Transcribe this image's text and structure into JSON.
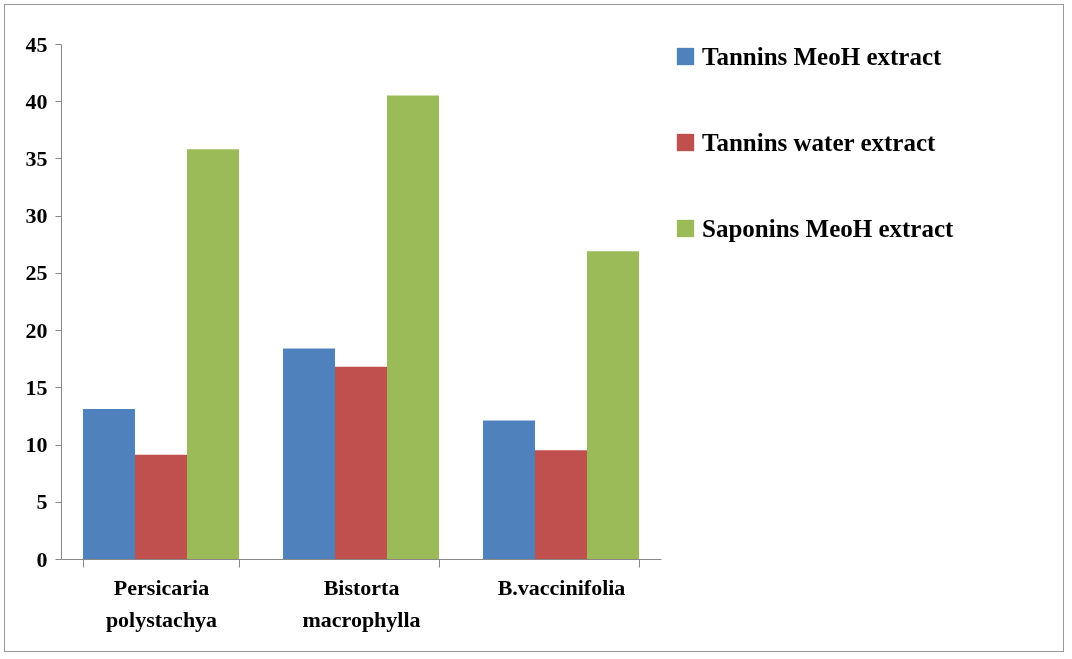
{
  "chart_data": {
    "type": "bar",
    "categories": [
      "Persicaria polystachya",
      "Bistorta macrophylla",
      "B.vaccinifolia"
    ],
    "series": [
      {
        "name": "Tannins MeoH extract",
        "color": "#4f81bd",
        "values": [
          13.1,
          18.4,
          12.1
        ]
      },
      {
        "name": "Tannins water extract",
        "color": "#c0504d",
        "values": [
          9.1,
          16.8,
          9.5
        ]
      },
      {
        "name": "Saponins MeoH extract",
        "color": "#9bbb59",
        "values": [
          35.8,
          40.5,
          26.9
        ]
      }
    ],
    "ylim": [
      0,
      45
    ],
    "yticks": [
      0,
      5,
      10,
      15,
      20,
      25,
      30,
      35,
      40,
      45
    ],
    "grid": false,
    "legend": "right"
  }
}
